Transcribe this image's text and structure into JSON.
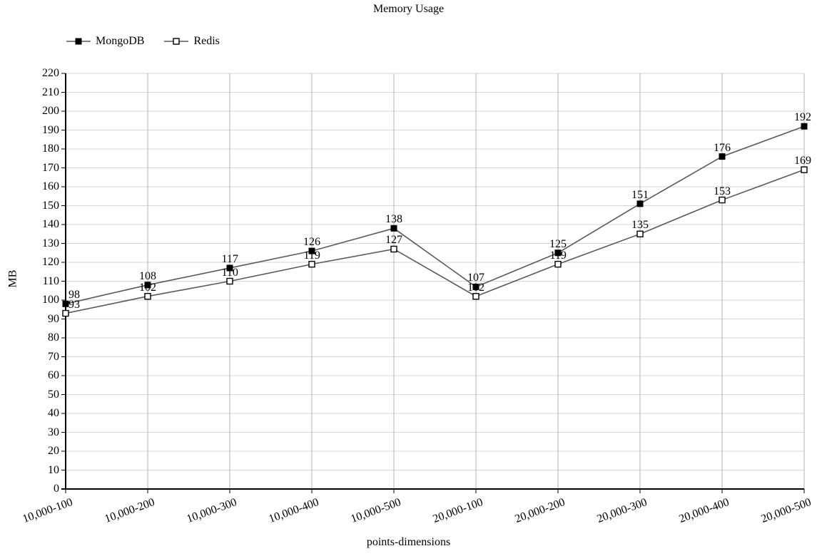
{
  "chart_data": {
    "type": "line",
    "title": "Memory Usage",
    "xlabel": "points-dimensions",
    "ylabel": "MB",
    "ylim": [
      0,
      220
    ],
    "ytick_step": 10,
    "grid": true,
    "legend_position": "top-left",
    "categories": [
      "10,000-100",
      "10,000-200",
      "10,000-300",
      "10,000-400",
      "10,000-500",
      "20,000-100",
      "20,000-200",
      "20,000-300",
      "20,000-400",
      "20,000-500"
    ],
    "series": [
      {
        "name": "MongoDB",
        "marker": "filled-square",
        "line_color": "#595959",
        "marker_fill": "#000000",
        "marker_stroke": "#000000",
        "values": [
          98,
          108,
          117,
          126,
          138,
          107,
          125,
          151,
          176,
          192
        ]
      },
      {
        "name": "Redis",
        "marker": "open-square",
        "line_color": "#595959",
        "marker_fill": "#ffffff",
        "marker_stroke": "#000000",
        "values": [
          93,
          102,
          110,
          119,
          127,
          102,
          119,
          135,
          153,
          169
        ]
      }
    ],
    "colors": {
      "grid_horizontal": "#d6d6d6",
      "grid_vertical": "#b0b0b0",
      "axis": "#000000",
      "data_label": "#000000",
      "background": "#ffffff"
    }
  }
}
